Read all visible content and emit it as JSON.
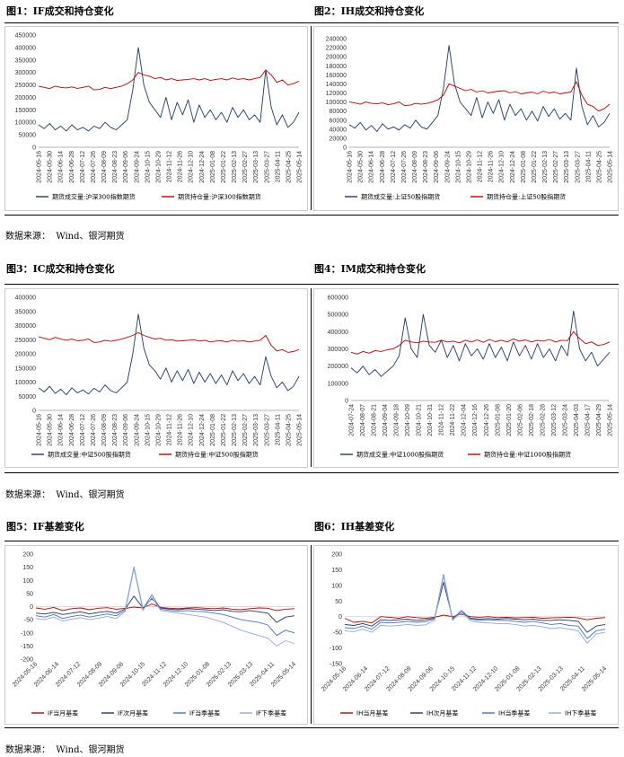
{
  "source_label": "数据来源：",
  "source_text": "Wind、银河期货",
  "figures": [
    {
      "id": "fig1",
      "caption": "图1：IF成交和持仓变化"
    },
    {
      "id": "fig2",
      "caption": "图2：IH成交和持仓变化"
    },
    {
      "id": "fig3",
      "caption": "图3：IC成交和持仓变化"
    },
    {
      "id": "fig4",
      "caption": "图4：IM成交和持仓变化"
    },
    {
      "id": "fig5",
      "caption": "图5：IF基差变化"
    },
    {
      "id": "fig6",
      "caption": "图6：IH基差变化"
    }
  ],
  "colors": {
    "navy": "#1f3864",
    "red": "#c00000",
    "blue": "#4472c4",
    "lightblue": "#8fa9d9",
    "gray_line": "#999999"
  },
  "chart_data": [
    {
      "id": "fig1",
      "type": "line",
      "ylim": [
        0,
        450000
      ],
      "yticks": [
        "0",
        "50000",
        "100000",
        "150000",
        "200000",
        "250000",
        "300000",
        "350000",
        "400000",
        "450000"
      ],
      "xticks": [
        "2024-05-16",
        "2024-05-30",
        "2024-06-14",
        "2024-06-28",
        "2024-07-12",
        "2024-07-26",
        "2024-08-09",
        "2024-08-23",
        "2024-09-06",
        "2024-09-24",
        "2024-10-15",
        "2024-10-29",
        "2024-11-12",
        "2024-11-26",
        "2024-12-10",
        "2024-12-24",
        "2025-01-08",
        "2025-01-22",
        "2025-02-13",
        "2025-02-27",
        "2025-03-13",
        "2025-03-27",
        "2025-04-11",
        "2025-04-25",
        "2025-05-14"
      ],
      "series": [
        {
          "name": "期货成交量:沪深300指数期货",
          "color": "navy",
          "values": [
            90000,
            75000,
            95000,
            70000,
            85000,
            65000,
            90000,
            70000,
            80000,
            65000,
            85000,
            75000,
            100000,
            80000,
            70000,
            90000,
            110000,
            230000,
            400000,
            250000,
            180000,
            150000,
            120000,
            200000,
            110000,
            180000,
            130000,
            190000,
            100000,
            170000,
            120000,
            150000,
            110000,
            140000,
            100000,
            160000,
            120000,
            150000,
            110000,
            130000,
            100000,
            310000,
            160000,
            90000,
            130000,
            80000,
            100000,
            140000
          ]
        },
        {
          "name": "期货持仓量:沪深300指数期货",
          "color": "red",
          "values": [
            245000,
            240000,
            235000,
            245000,
            240000,
            238000,
            242000,
            236000,
            240000,
            245000,
            230000,
            232000,
            240000,
            235000,
            240000,
            245000,
            255000,
            270000,
            300000,
            290000,
            285000,
            275000,
            280000,
            270000,
            275000,
            268000,
            270000,
            272000,
            275000,
            270000,
            275000,
            268000,
            272000,
            275000,
            270000,
            278000,
            272000,
            275000,
            270000,
            275000,
            280000,
            310000,
            290000,
            260000,
            270000,
            250000,
            255000,
            265000
          ]
        }
      ]
    },
    {
      "id": "fig2",
      "type": "line",
      "ylim": [
        0,
        240000
      ],
      "yticks": [
        "0",
        "20000",
        "40000",
        "60000",
        "80000",
        "100000",
        "120000",
        "140000",
        "160000",
        "180000",
        "200000",
        "220000",
        "240000"
      ],
      "xticks": [
        "2024-05-16",
        "2024-05-30",
        "2024-06-14",
        "2024-06-28",
        "2024-07-12",
        "2024-07-26",
        "2024-08-09",
        "2024-08-23",
        "2024-09-06",
        "2024-09-24",
        "2024-10-15",
        "2024-10-29",
        "2024-11-12",
        "2024-11-26",
        "2024-12-10",
        "2024-12-24",
        "2025-01-08",
        "2025-01-22",
        "2025-02-13",
        "2025-02-27",
        "2025-03-13",
        "2025-03-27",
        "2025-04-11",
        "2025-04-25",
        "2025-05-14"
      ],
      "series": [
        {
          "name": "期货成交量:上证50股指期货",
          "color": "navy",
          "values": [
            50000,
            42000,
            55000,
            38000,
            48000,
            35000,
            52000,
            40000,
            45000,
            38000,
            50000,
            42000,
            60000,
            45000,
            40000,
            55000,
            70000,
            130000,
            225000,
            140000,
            100000,
            85000,
            70000,
            110000,
            65000,
            100000,
            75000,
            105000,
            60000,
            95000,
            70000,
            85000,
            60000,
            80000,
            58000,
            90000,
            68000,
            85000,
            62000,
            75000,
            60000,
            175000,
            90000,
            50000,
            70000,
            45000,
            55000,
            75000
          ]
        },
        {
          "name": "期货持仓量:上证50股指期货",
          "color": "red",
          "values": [
            100000,
            98000,
            95000,
            100000,
            97000,
            96000,
            98000,
            94000,
            96000,
            100000,
            92000,
            93000,
            97000,
            95000,
            97000,
            100000,
            105000,
            115000,
            140000,
            135000,
            130000,
            125000,
            128000,
            122000,
            125000,
            120000,
            122000,
            124000,
            125000,
            120000,
            123000,
            118000,
            120000,
            122000,
            118000,
            124000,
            120000,
            122000,
            118000,
            120000,
            122000,
            145000,
            115000,
            95000,
            90000,
            80000,
            85000,
            95000
          ]
        }
      ]
    },
    {
      "id": "fig3",
      "type": "line",
      "ylim": [
        0,
        400000
      ],
      "yticks": [
        "0",
        "50000",
        "100000",
        "150000",
        "200000",
        "250000",
        "300000",
        "350000",
        "400000"
      ],
      "xticks": [
        "2024-05-16",
        "2024-05-30",
        "2024-06-14",
        "2024-06-28",
        "2024-07-12",
        "2024-07-26",
        "2024-08-09",
        "2024-08-23",
        "2024-09-06",
        "2024-09-24",
        "2024-10-15",
        "2024-10-29",
        "2024-11-12",
        "2024-11-26",
        "2024-12-10",
        "2024-12-24",
        "2025-01-08",
        "2025-01-22",
        "2025-02-13",
        "2025-02-27",
        "2025-03-13",
        "2025-03-27",
        "2025-04-11",
        "2025-04-25",
        "2025-05-14"
      ],
      "series": [
        {
          "name": "期货成交量:中证500股指期货",
          "color": "navy",
          "values": [
            80000,
            65000,
            85000,
            60000,
            75000,
            55000,
            80000,
            62000,
            72000,
            58000,
            78000,
            65000,
            90000,
            70000,
            62000,
            80000,
            100000,
            200000,
            340000,
            220000,
            160000,
            140000,
            110000,
            150000,
            100000,
            140000,
            105000,
            145000,
            95000,
            135000,
            100000,
            130000,
            95000,
            125000,
            90000,
            140000,
            105000,
            130000,
            95000,
            120000,
            90000,
            190000,
            120000,
            80000,
            100000,
            70000,
            85000,
            120000
          ]
        },
        {
          "name": "期货持仓量:中证500股指期货",
          "color": "red",
          "values": [
            260000,
            255000,
            250000,
            258000,
            252000,
            248000,
            252000,
            246000,
            248000,
            252000,
            240000,
            242000,
            248000,
            244000,
            248000,
            252000,
            258000,
            265000,
            275000,
            265000,
            258000,
            252000,
            255000,
            248000,
            250000,
            245000,
            246000,
            248000,
            250000,
            245000,
            248000,
            242000,
            245000,
            246000,
            242000,
            248000,
            244000,
            246000,
            242000,
            245000,
            248000,
            265000,
            230000,
            210000,
            215000,
            205000,
            208000,
            215000
          ]
        }
      ]
    },
    {
      "id": "fig4",
      "type": "line",
      "ylim": [
        0,
        600000
      ],
      "yticks": [
        "0",
        "100000",
        "200000",
        "300000",
        "400000",
        "500000",
        "600000"
      ],
      "xticks": [
        "2024-07-24",
        "2024-08-07",
        "2024-08-21",
        "2024-09-04",
        "2024-09-18",
        "2024-10-09",
        "2024-10-21",
        "2024-10-31",
        "2024-11-12",
        "2024-11-22",
        "2024-12-04",
        "2024-12-16",
        "2024-12-26",
        "2025-01-08",
        "2025-01-20",
        "2025-02-06",
        "2025-02-18",
        "2025-02-28",
        "2025-03-12",
        "2025-03-24",
        "2025-04-03",
        "2025-04-17",
        "2025-04-29",
        "2025-05-14"
      ],
      "series": [
        {
          "name": "期货成交量:中证1000股指期货",
          "color": "navy",
          "values": [
            190000,
            160000,
            200000,
            150000,
            180000,
            140000,
            170000,
            200000,
            260000,
            480000,
            300000,
            250000,
            500000,
            320000,
            280000,
            350000,
            250000,
            320000,
            230000,
            330000,
            260000,
            300000,
            240000,
            330000,
            250000,
            310000,
            230000,
            340000,
            260000,
            320000,
            240000,
            330000,
            250000,
            300000,
            230000,
            320000,
            260000,
            520000,
            300000,
            230000,
            280000,
            200000,
            240000,
            280000
          ]
        },
        {
          "name": "期货持仓量:中证1000股指期货",
          "color": "red",
          "values": [
            280000,
            270000,
            285000,
            275000,
            290000,
            285000,
            295000,
            300000,
            320000,
            350000,
            340000,
            335000,
            345000,
            340000,
            338000,
            350000,
            340000,
            345000,
            335000,
            350000,
            340000,
            352000,
            338000,
            355000,
            342000,
            350000,
            340000,
            358000,
            345000,
            352000,
            340000,
            350000,
            345000,
            355000,
            340000,
            350000,
            348000,
            400000,
            360000,
            330000,
            340000,
            320000,
            325000,
            340000
          ]
        }
      ]
    },
    {
      "id": "fig5",
      "type": "line",
      "ylim": [
        -200,
        200
      ],
      "yticks": [
        "-200",
        "-150",
        "-100",
        "-50",
        "0",
        "50",
        "100",
        "150",
        "200"
      ],
      "xticks": [
        "2024-05-16",
        "2024-06-14",
        "2024-07-12",
        "2024-08-09",
        "2024-09-06",
        "2024-10-15",
        "2024-11-12",
        "2024-12-10",
        "2025-01-08",
        "2025-02-13",
        "2025-03-13",
        "2025-04-11",
        "2025-05-14"
      ],
      "series": [
        {
          "name": "IF当月基差",
          "color": "red",
          "values": [
            -5,
            -10,
            -3,
            -15,
            -8,
            -5,
            -12,
            -6,
            -4,
            -10,
            -7,
            -2,
            -5,
            10,
            -3,
            -6,
            -8,
            -5,
            -4,
            -6,
            -8,
            -5,
            -10,
            -12,
            -8,
            -5,
            -6,
            -15,
            -10,
            -8
          ]
        },
        {
          "name": "IF次月基差",
          "color": "navy",
          "values": [
            -25,
            -28,
            -22,
            -30,
            -25,
            -20,
            -28,
            -22,
            -18,
            -25,
            -10,
            40,
            -5,
            30,
            -5,
            -10,
            -12,
            -8,
            -10,
            -12,
            -15,
            -12,
            -18,
            -20,
            -15,
            -20,
            -25,
            -60,
            -40,
            -35
          ]
        },
        {
          "name": "IF当季基差",
          "color": "blue",
          "values": [
            -35,
            -40,
            -30,
            -45,
            -38,
            -32,
            -40,
            -34,
            -28,
            -35,
            -15,
            150,
            -10,
            45,
            -10,
            -15,
            -18,
            -15,
            -18,
            -20,
            -25,
            -30,
            -40,
            -50,
            -55,
            -60,
            -70,
            -110,
            -90,
            -100
          ]
        },
        {
          "name": "IF下季基差",
          "color": "lightblue",
          "values": [
            -45,
            -50,
            -40,
            -55,
            -48,
            -42,
            -50,
            -44,
            -38,
            -45,
            -20,
            145,
            -15,
            35,
            -15,
            -20,
            -25,
            -30,
            -35,
            -40,
            -50,
            -60,
            -75,
            -90,
            -100,
            -110,
            -120,
            -150,
            -130,
            -140
          ]
        }
      ]
    },
    {
      "id": "fig6",
      "type": "line",
      "ylim": [
        -150,
        200
      ],
      "yticks": [
        "-150",
        "-100",
        "-50",
        "0",
        "50",
        "100",
        "150",
        "200"
      ],
      "xticks": [
        "2024-05-16",
        "2024-06-14",
        "2024-07-12",
        "2024-08-09",
        "2024-09-06",
        "2024-10-15",
        "2024-11-12",
        "2024-12-10",
        "2025-01-08",
        "2025-02-13",
        "2025-03-13",
        "2025-04-11",
        "2025-05-14"
      ],
      "series": [
        {
          "name": "IH当月基差",
          "color": "red",
          "values": [
            -5,
            -18,
            -15,
            -20,
            0,
            -2,
            -5,
            0,
            -3,
            -5,
            -2,
            5,
            0,
            8,
            0,
            -2,
            0,
            -3,
            -2,
            -4,
            -3,
            -2,
            -5,
            -4,
            -3,
            -2,
            -4,
            -10,
            -5,
            -3
          ]
        },
        {
          "name": "IH次月基差",
          "color": "navy",
          "values": [
            -25,
            -28,
            -22,
            -30,
            -10,
            -12,
            -10,
            -8,
            -12,
            -10,
            -5,
            110,
            -5,
            15,
            -5,
            -8,
            -6,
            -8,
            -6,
            -8,
            -10,
            -8,
            -12,
            -12,
            -10,
            -12,
            -15,
            -50,
            -30,
            -25
          ]
        },
        {
          "name": "IH当季基差",
          "color": "blue",
          "values": [
            -35,
            -38,
            -30,
            -40,
            -18,
            -20,
            -18,
            -15,
            -18,
            -16,
            -8,
            135,
            -8,
            20,
            -8,
            -12,
            -10,
            -12,
            -12,
            -15,
            -18,
            -15,
            -20,
            -25,
            -22,
            -28,
            -30,
            -70,
            -45,
            -40
          ]
        },
        {
          "name": "IH下季基差",
          "color": "lightblue",
          "values": [
            -45,
            -48,
            -40,
            -50,
            -28,
            -30,
            -28,
            -25,
            -28,
            -26,
            -12,
            130,
            -12,
            15,
            -14,
            -18,
            -20,
            -22,
            -22,
            -25,
            -30,
            -28,
            -32,
            -38,
            -35,
            -40,
            -45,
            -85,
            -55,
            -50
          ]
        }
      ]
    }
  ]
}
